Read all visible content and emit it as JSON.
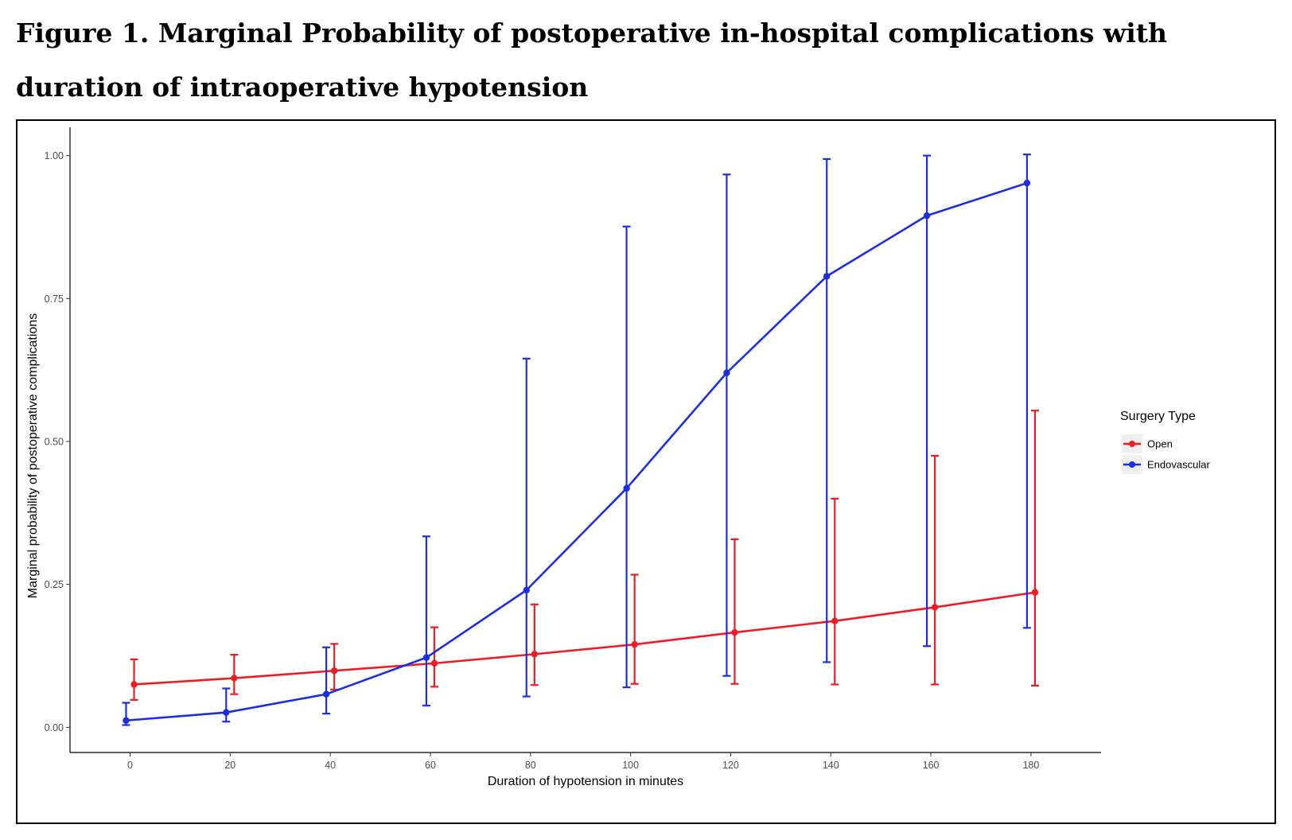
{
  "figure": {
    "title": "Figure 1. Marginal Probability of postoperative in-hospital complications with duration of intraoperative hypotension"
  },
  "chart_data": {
    "type": "line",
    "title": "",
    "xlabel": "Duration of hypotension in minutes",
    "ylabel": "Marginal probability of postoperative complications",
    "xlim": [
      -12,
      194
    ],
    "ylim": [
      -0.044,
      1.044
    ],
    "x_ticks": [
      0,
      20,
      40,
      60,
      80,
      100,
      120,
      140,
      160,
      180
    ],
    "y_ticks": [
      0.0,
      0.25,
      0.5,
      0.75,
      1.0
    ],
    "y_tick_labels": [
      "0.00",
      "0.25",
      "0.50",
      "0.75",
      "1.00"
    ],
    "grid": false,
    "error_bars": true,
    "legend": {
      "title": "Surgery Type",
      "position": "right"
    },
    "series": [
      {
        "name": "Open",
        "color": "#ee1c25",
        "dodge": 0.8,
        "x": [
          0,
          20,
          40,
          60,
          80,
          100,
          120,
          140,
          160,
          180
        ],
        "y": [
          0.075,
          0.086,
          0.099,
          0.112,
          0.128,
          0.145,
          0.166,
          0.186,
          0.21,
          0.236
        ],
        "lower": [
          0.048,
          0.058,
          0.066,
          0.071,
          0.074,
          0.076,
          0.076,
          0.075,
          0.075,
          0.073
        ],
        "upper": [
          0.119,
          0.127,
          0.146,
          0.175,
          0.215,
          0.267,
          0.329,
          0.4,
          0.475,
          0.554
        ]
      },
      {
        "name": "Endovascular",
        "color": "#1c2fe0",
        "dodge": -0.8,
        "x": [
          0,
          20,
          40,
          60,
          80,
          100,
          120,
          140,
          160,
          180
        ],
        "y": [
          0.012,
          0.026,
          0.058,
          0.122,
          0.24,
          0.418,
          0.62,
          0.789,
          0.895,
          0.952
        ],
        "lower": [
          0.004,
          0.01,
          0.024,
          0.038,
          0.054,
          0.07,
          0.09,
          0.114,
          0.142,
          0.174
        ],
        "upper": [
          0.043,
          0.068,
          0.14,
          0.334,
          0.645,
          0.876,
          0.967,
          0.994,
          1.0,
          1.002
        ]
      }
    ]
  }
}
